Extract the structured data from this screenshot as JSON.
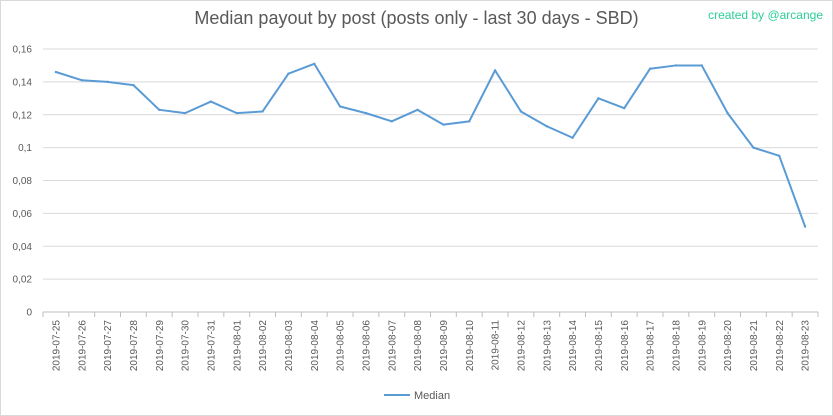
{
  "credit": "created by @arcange",
  "chart_data": {
    "type": "line",
    "title": "Median payout by post (posts only - last 30 days - SBD)",
    "xlabel": "",
    "ylabel": "",
    "ylim": [
      0,
      0.16
    ],
    "y_ticks": [
      "0",
      "0,02",
      "0,04",
      "0,06",
      "0,08",
      "0,1",
      "0,12",
      "0,14",
      "0,16"
    ],
    "categories": [
      "2019-07-25",
      "2019-07-26",
      "2019-07-27",
      "2019-07-28",
      "2019-07-29",
      "2019-07-30",
      "2019-07-31",
      "2019-08-01",
      "2019-08-02",
      "2019-08-03",
      "2019-08-04",
      "2019-08-05",
      "2019-08-06",
      "2019-08-07",
      "2019-08-08",
      "2019-08-09",
      "2019-08-10",
      "2019-08-11",
      "2019-08-12",
      "2019-08-13",
      "2019-08-14",
      "2019-08-15",
      "2019-08-16",
      "2019-08-17",
      "2019-08-18",
      "2019-08-19",
      "2019-08-20",
      "2019-08-21",
      "2019-08-22",
      "2019-08-23"
    ],
    "series": [
      {
        "name": "Median",
        "color": "#5b9bd5",
        "values": [
          0.146,
          0.141,
          0.14,
          0.138,
          0.123,
          0.121,
          0.128,
          0.121,
          0.122,
          0.145,
          0.151,
          0.125,
          0.121,
          0.116,
          0.123,
          0.114,
          0.116,
          0.147,
          0.122,
          0.113,
          0.106,
          0.13,
          0.124,
          0.148,
          0.15,
          0.15,
          0.121,
          0.1,
          0.095,
          0.052
        ]
      }
    ],
    "grid": true,
    "legend": "bottom-center"
  }
}
